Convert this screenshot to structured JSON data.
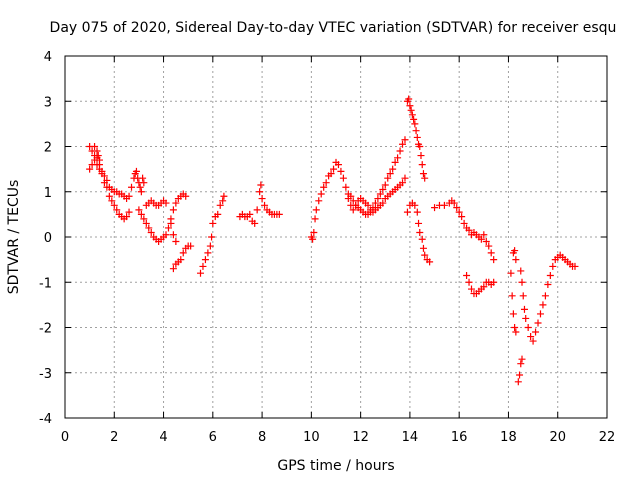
{
  "chart_data": {
    "type": "scatter",
    "title": "Day 075 of 2020, Sidereal Day-to-day VTEC variation (SDTVAR) for receiver esqu",
    "xlabel": "GPS time / hours",
    "ylabel": "SDTVAR / TECUs",
    "xlim": [
      0,
      22
    ],
    "ylim": [
      -4,
      4
    ],
    "xticks": [
      "0",
      "2",
      "4",
      "6",
      "8",
      "10",
      "12",
      "14",
      "16",
      "18",
      "20",
      "22"
    ],
    "yticks": [
      "-4",
      "-3",
      "-2",
      "-1",
      "0",
      "1",
      "2",
      "3",
      "4"
    ],
    "grid": true,
    "marker": "+",
    "color": "#ff0000",
    "series": [
      {
        "name": "SDTVAR",
        "points": [
          [
            1.0,
            2.0
          ],
          [
            1.1,
            1.9
          ],
          [
            1.2,
            1.8
          ],
          [
            1.3,
            1.6
          ],
          [
            1.4,
            1.5
          ],
          [
            1.5,
            1.4
          ],
          [
            1.6,
            1.2
          ],
          [
            1.7,
            1.1
          ],
          [
            1.8,
            0.9
          ],
          [
            1.9,
            0.8
          ],
          [
            2.0,
            0.7
          ],
          [
            2.1,
            0.6
          ],
          [
            2.2,
            0.5
          ],
          [
            2.3,
            0.45
          ],
          [
            2.4,
            0.4
          ],
          [
            2.5,
            0.45
          ],
          [
            2.6,
            0.55
          ],
          [
            1.0,
            1.5
          ],
          [
            1.1,
            1.6
          ],
          [
            1.2,
            1.7
          ],
          [
            1.3,
            1.75
          ],
          [
            1.4,
            1.6
          ],
          [
            1.5,
            1.45
          ],
          [
            1.6,
            1.35
          ],
          [
            1.7,
            1.25
          ],
          [
            1.8,
            1.1
          ],
          [
            1.9,
            1.05
          ],
          [
            2.0,
            1.0
          ],
          [
            2.1,
            1.0
          ],
          [
            2.2,
            0.95
          ],
          [
            2.3,
            0.95
          ],
          [
            2.4,
            0.9
          ],
          [
            2.5,
            0.85
          ],
          [
            2.6,
            0.9
          ],
          [
            1.2,
            2.0
          ],
          [
            1.3,
            1.9
          ],
          [
            1.35,
            1.8
          ],
          [
            1.4,
            1.7
          ],
          [
            2.7,
            1.1
          ],
          [
            2.8,
            1.3
          ],
          [
            2.85,
            1.4
          ],
          [
            2.9,
            1.45
          ],
          [
            2.95,
            1.3
          ],
          [
            3.0,
            1.2
          ],
          [
            3.05,
            1.1
          ],
          [
            3.1,
            1.0
          ],
          [
            3.15,
            1.3
          ],
          [
            3.2,
            1.2
          ],
          [
            3.3,
            0.7
          ],
          [
            3.4,
            0.75
          ],
          [
            3.5,
            0.8
          ],
          [
            3.6,
            0.75
          ],
          [
            3.7,
            0.7
          ],
          [
            3.8,
            0.7
          ],
          [
            3.9,
            0.75
          ],
          [
            4.0,
            0.8
          ],
          [
            4.1,
            0.75
          ],
          [
            3.0,
            0.6
          ],
          [
            3.1,
            0.5
          ],
          [
            3.2,
            0.4
          ],
          [
            3.3,
            0.3
          ],
          [
            3.4,
            0.2
          ],
          [
            3.5,
            0.1
          ],
          [
            3.6,
            0.0
          ],
          [
            3.7,
            -0.05
          ],
          [
            3.8,
            -0.1
          ],
          [
            3.9,
            -0.05
          ],
          [
            4.0,
            0.0
          ],
          [
            4.1,
            0.05
          ],
          [
            4.2,
            0.2
          ],
          [
            4.3,
            0.4
          ],
          [
            4.4,
            0.6
          ],
          [
            4.5,
            0.75
          ],
          [
            4.6,
            0.85
          ],
          [
            4.7,
            0.9
          ],
          [
            4.8,
            0.95
          ],
          [
            4.9,
            0.9
          ],
          [
            4.3,
            0.3
          ],
          [
            4.4,
            0.05
          ],
          [
            4.5,
            -0.1
          ],
          [
            4.4,
            -0.7
          ],
          [
            4.5,
            -0.6
          ],
          [
            4.6,
            -0.55
          ],
          [
            4.7,
            -0.5
          ],
          [
            4.8,
            -0.35
          ],
          [
            4.9,
            -0.25
          ],
          [
            5.0,
            -0.2
          ],
          [
            5.1,
            -0.2
          ],
          [
            5.5,
            -0.8
          ],
          [
            5.6,
            -0.65
          ],
          [
            5.7,
            -0.5
          ],
          [
            5.8,
            -0.35
          ],
          [
            5.9,
            -0.2
          ],
          [
            5.95,
            0.0
          ],
          [
            6.0,
            0.3
          ],
          [
            6.1,
            0.45
          ],
          [
            6.2,
            0.5
          ],
          [
            6.3,
            0.7
          ],
          [
            6.4,
            0.8
          ],
          [
            6.45,
            0.9
          ],
          [
            7.1,
            0.45
          ],
          [
            7.2,
            0.5
          ],
          [
            7.3,
            0.45
          ],
          [
            7.4,
            0.45
          ],
          [
            7.5,
            0.5
          ],
          [
            7.6,
            0.35
          ],
          [
            7.7,
            0.3
          ],
          [
            7.8,
            0.6
          ],
          [
            7.9,
            1.0
          ],
          [
            7.95,
            1.15
          ],
          [
            8.0,
            0.85
          ],
          [
            8.1,
            0.7
          ],
          [
            8.2,
            0.6
          ],
          [
            8.3,
            0.55
          ],
          [
            8.4,
            0.5
          ],
          [
            8.5,
            0.5
          ],
          [
            8.6,
            0.5
          ],
          [
            8.7,
            0.5
          ],
          [
            10.0,
            0.0
          ],
          [
            10.05,
            -0.05
          ],
          [
            10.1,
            0.1
          ],
          [
            10.15,
            0.4
          ],
          [
            10.2,
            0.6
          ],
          [
            10.3,
            0.8
          ],
          [
            10.4,
            0.95
          ],
          [
            10.5,
            1.1
          ],
          [
            10.6,
            1.2
          ],
          [
            10.7,
            1.35
          ],
          [
            10.8,
            1.4
          ],
          [
            10.9,
            1.5
          ],
          [
            11.0,
            1.65
          ],
          [
            11.1,
            1.6
          ],
          [
            11.2,
            1.45
          ],
          [
            11.3,
            1.3
          ],
          [
            11.4,
            1.1
          ],
          [
            11.5,
            0.95
          ],
          [
            11.6,
            0.9
          ],
          [
            11.7,
            0.8
          ],
          [
            11.8,
            0.7
          ],
          [
            11.9,
            0.65
          ],
          [
            12.0,
            0.6
          ],
          [
            12.1,
            0.55
          ],
          [
            12.2,
            0.5
          ],
          [
            12.3,
            0.5
          ],
          [
            12.4,
            0.55
          ],
          [
            12.5,
            0.65
          ],
          [
            12.6,
            0.75
          ],
          [
            12.7,
            0.85
          ],
          [
            12.8,
            0.95
          ],
          [
            12.9,
            1.05
          ],
          [
            13.0,
            1.15
          ],
          [
            13.1,
            1.3
          ],
          [
            13.2,
            1.4
          ],
          [
            13.3,
            1.5
          ],
          [
            13.4,
            1.65
          ],
          [
            13.5,
            1.75
          ],
          [
            13.6,
            1.9
          ],
          [
            13.7,
            2.05
          ],
          [
            13.8,
            2.15
          ],
          [
            11.5,
            0.85
          ],
          [
            11.6,
            0.7
          ],
          [
            11.7,
            0.6
          ],
          [
            11.8,
            0.7
          ],
          [
            11.9,
            0.8
          ],
          [
            12.0,
            0.85
          ],
          [
            12.1,
            0.8
          ],
          [
            12.2,
            0.75
          ],
          [
            12.3,
            0.7
          ],
          [
            12.4,
            0.6
          ],
          [
            12.5,
            0.55
          ],
          [
            12.6,
            0.6
          ],
          [
            12.7,
            0.65
          ],
          [
            12.8,
            0.7
          ],
          [
            12.9,
            0.75
          ],
          [
            13.0,
            0.85
          ],
          [
            13.1,
            0.9
          ],
          [
            13.2,
            0.95
          ],
          [
            13.3,
            1.0
          ],
          [
            13.4,
            1.05
          ],
          [
            13.5,
            1.1
          ],
          [
            13.6,
            1.15
          ],
          [
            13.7,
            1.2
          ],
          [
            13.8,
            1.3
          ],
          [
            13.9,
            3.0
          ],
          [
            13.95,
            3.05
          ],
          [
            14.0,
            2.9
          ],
          [
            14.05,
            2.8
          ],
          [
            14.1,
            2.7
          ],
          [
            14.15,
            2.6
          ],
          [
            14.2,
            2.5
          ],
          [
            14.25,
            2.35
          ],
          [
            14.3,
            2.2
          ],
          [
            14.35,
            2.05
          ],
          [
            14.4,
            2.0
          ],
          [
            14.45,
            1.8
          ],
          [
            14.5,
            1.6
          ],
          [
            14.55,
            1.4
          ],
          [
            14.6,
            1.3
          ],
          [
            13.9,
            0.55
          ],
          [
            14.0,
            0.7
          ],
          [
            14.1,
            0.75
          ],
          [
            14.2,
            0.7
          ],
          [
            14.3,
            0.55
          ],
          [
            14.35,
            0.3
          ],
          [
            14.4,
            0.1
          ],
          [
            14.5,
            -0.05
          ],
          [
            14.55,
            -0.25
          ],
          [
            14.6,
            -0.4
          ],
          [
            14.7,
            -0.5
          ],
          [
            14.8,
            -0.55
          ],
          [
            15.0,
            0.65
          ],
          [
            15.2,
            0.7
          ],
          [
            15.4,
            0.7
          ],
          [
            15.6,
            0.75
          ],
          [
            15.7,
            0.8
          ],
          [
            15.8,
            0.75
          ],
          [
            15.9,
            0.65
          ],
          [
            16.0,
            0.55
          ],
          [
            16.1,
            0.45
          ],
          [
            16.2,
            0.3
          ],
          [
            16.3,
            0.2
          ],
          [
            16.4,
            0.15
          ],
          [
            16.5,
            0.05
          ],
          [
            16.6,
            0.1
          ],
          [
            16.7,
            0.05
          ],
          [
            16.8,
            0.0
          ],
          [
            16.9,
            -0.05
          ],
          [
            17.0,
            0.05
          ],
          [
            17.1,
            -0.1
          ],
          [
            17.2,
            -0.2
          ],
          [
            17.3,
            -0.35
          ],
          [
            17.4,
            -0.5
          ],
          [
            16.3,
            -0.85
          ],
          [
            16.4,
            -1.0
          ],
          [
            16.5,
            -1.15
          ],
          [
            16.6,
            -1.25
          ],
          [
            16.7,
            -1.25
          ],
          [
            16.8,
            -1.2
          ],
          [
            16.9,
            -1.15
          ],
          [
            17.0,
            -1.1
          ],
          [
            17.1,
            -1.0
          ],
          [
            17.2,
            -1.0
          ],
          [
            17.3,
            -1.05
          ],
          [
            17.4,
            -1.0
          ],
          [
            18.1,
            -0.8
          ],
          [
            18.15,
            -1.3
          ],
          [
            18.2,
            -1.7
          ],
          [
            18.25,
            -2.0
          ],
          [
            18.3,
            -2.1
          ],
          [
            18.2,
            -0.35
          ],
          [
            18.25,
            -0.3
          ],
          [
            18.3,
            -0.5
          ],
          [
            18.4,
            -3.2
          ],
          [
            18.45,
            -3.05
          ],
          [
            18.5,
            -2.8
          ],
          [
            18.55,
            -2.7
          ],
          [
            18.5,
            -0.75
          ],
          [
            18.55,
            -1.0
          ],
          [
            18.6,
            -1.3
          ],
          [
            18.65,
            -1.6
          ],
          [
            18.7,
            -1.8
          ],
          [
            18.8,
            -2.0
          ],
          [
            18.9,
            -2.2
          ],
          [
            19.0,
            -2.3
          ],
          [
            19.1,
            -2.1
          ],
          [
            19.2,
            -1.9
          ],
          [
            19.3,
            -1.7
          ],
          [
            19.4,
            -1.5
          ],
          [
            19.5,
            -1.3
          ],
          [
            19.6,
            -1.05
          ],
          [
            19.7,
            -0.85
          ],
          [
            19.8,
            -0.65
          ],
          [
            19.9,
            -0.5
          ],
          [
            20.0,
            -0.45
          ],
          [
            20.1,
            -0.4
          ],
          [
            20.2,
            -0.45
          ],
          [
            20.3,
            -0.5
          ],
          [
            20.4,
            -0.55
          ],
          [
            20.5,
            -0.6
          ],
          [
            20.6,
            -0.65
          ],
          [
            20.7,
            -0.65
          ]
        ]
      }
    ]
  }
}
